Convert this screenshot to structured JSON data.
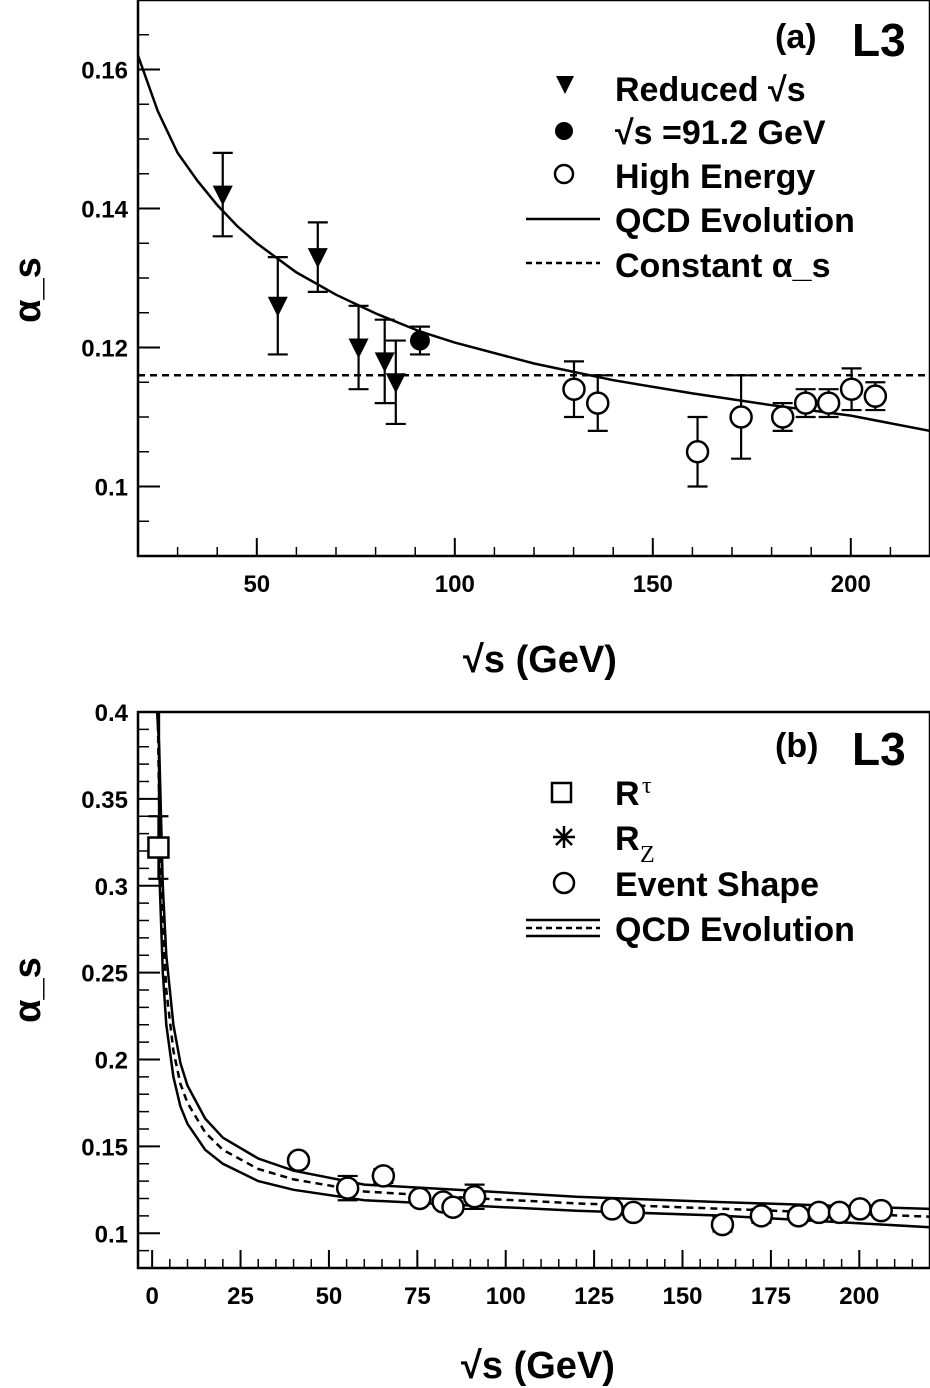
{
  "chart_data": [
    {
      "type": "scatter",
      "panel_label": "(a)",
      "experiment": "L3",
      "xlabel": "√s (GeV)",
      "ylabel": "α_s",
      "xlim": [
        20,
        220
      ],
      "ylim": [
        0.09,
        0.17
      ],
      "x_ticks": [
        50,
        100,
        150,
        200
      ],
      "y_ticks": [
        0.1,
        0.12,
        0.14,
        0.16
      ],
      "x_tick_labels": [
        "50",
        "100",
        "150",
        "200"
      ],
      "y_tick_labels": [
        "0.1",
        "0.12",
        "0.14",
        "0.16"
      ],
      "grid": false,
      "legend_position": "top-right",
      "legend": [
        {
          "label": "Reduced √s",
          "marker": "triangle-down-filled"
        },
        {
          "label": "√s =91.2 GeV",
          "marker": "circle-filled"
        },
        {
          "label": "High Energy",
          "marker": "circle-open"
        },
        {
          "label": "QCD Evolution",
          "marker": "solid-line"
        },
        {
          "label": "Constant α_s",
          "marker": "dashed-line"
        }
      ],
      "series": [
        {
          "name": "Reduced √s",
          "marker": "triangle-down-filled",
          "x": [
            41.4,
            55.3,
            65.4,
            75.7,
            82.3,
            85.1
          ],
          "y": [
            0.142,
            0.126,
            0.133,
            0.12,
            0.118,
            0.115
          ],
          "err_low": [
            0.006,
            0.007,
            0.005,
            0.006,
            0.006,
            0.006
          ],
          "err_high": [
            0.006,
            0.007,
            0.005,
            0.006,
            0.006,
            0.006
          ]
        },
        {
          "name": "√s =91.2 GeV",
          "marker": "circle-filled",
          "x": [
            91.2
          ],
          "y": [
            0.121
          ],
          "err_low": [
            0.002
          ],
          "err_high": [
            0.002
          ]
        },
        {
          "name": "High Energy",
          "marker": "circle-open",
          "x": [
            130.1,
            136.1,
            161.3,
            172.3,
            182.8,
            188.6,
            194.4,
            200.2,
            206.2
          ],
          "y": [
            0.114,
            0.112,
            0.105,
            0.11,
            0.11,
            0.112,
            0.112,
            0.114,
            0.113
          ],
          "err_low": [
            0.004,
            0.004,
            0.005,
            0.006,
            0.002,
            0.002,
            0.002,
            0.003,
            0.002
          ],
          "err_high": [
            0.004,
            0.004,
            0.005,
            0.006,
            0.002,
            0.002,
            0.002,
            0.003,
            0.002
          ]
        }
      ],
      "qcd_evolution": {
        "x": [
          20,
          25,
          30,
          35,
          40,
          45,
          50,
          60,
          70,
          80,
          91.2,
          100,
          120,
          140,
          160,
          180,
          200,
          220
        ],
        "y": [
          0.162,
          0.154,
          0.148,
          0.144,
          0.1405,
          0.1375,
          0.135,
          0.1308,
          0.1276,
          0.1249,
          0.1223,
          0.1207,
          0.1177,
          0.1153,
          0.1134,
          0.1117,
          0.1102,
          0.108
        ]
      },
      "constant_alpha_s": 0.116
    },
    {
      "type": "scatter",
      "panel_label": "(b)",
      "experiment": "L3",
      "xlabel": "√s (GeV)",
      "ylabel": "α_s",
      "xlim": [
        -4,
        220
      ],
      "ylim": [
        0.08,
        0.4
      ],
      "x_ticks": [
        0,
        25,
        50,
        75,
        100,
        125,
        150,
        175,
        200
      ],
      "y_ticks": [
        0.1,
        0.15,
        0.2,
        0.25,
        0.3,
        0.35,
        0.4
      ],
      "x_tick_labels": [
        "0",
        "25",
        "50",
        "75",
        "100",
        "125",
        "150",
        "175",
        "200"
      ],
      "y_tick_labels": [
        "0.1",
        "0.15",
        "0.2",
        "0.25",
        "0.3",
        "0.35",
        "0.4"
      ],
      "grid": false,
      "legend_position": "top-right",
      "legend": [
        {
          "label": "R",
          "sub": "τ",
          "marker": "square-open"
        },
        {
          "label": "R",
          "sub": "Z",
          "marker": "asterisk"
        },
        {
          "label": "Event Shape",
          "marker": "circle-open"
        },
        {
          "label": "QCD Evolution",
          "marker": "band"
        }
      ],
      "series": [
        {
          "name": "R_τ",
          "marker": "square-open",
          "x": [
            1.777
          ],
          "y": [
            0.322
          ],
          "err_low": [
            0.018
          ],
          "err_high": [
            0.018
          ]
        },
        {
          "name": "R_Z",
          "marker": "asterisk",
          "x": [
            91.2
          ],
          "y": [
            0.121
          ],
          "err_low": [
            0.007
          ],
          "err_high": [
            0.007
          ]
        },
        {
          "name": "Event Shape",
          "marker": "circle-open",
          "x": [
            41.4,
            55.3,
            65.4,
            75.7,
            82.3,
            85.1,
            91.2,
            130.1,
            136.1,
            161.3,
            172.3,
            182.8,
            188.6,
            194.4,
            200.2,
            206.2
          ],
          "y": [
            0.142,
            0.126,
            0.133,
            0.12,
            0.118,
            0.115,
            0.121,
            0.114,
            0.112,
            0.105,
            0.11,
            0.11,
            0.112,
            0.112,
            0.114,
            0.113
          ],
          "err_low": [
            0.003,
            0.007,
            0.004,
            0.003,
            0.003,
            0.003,
            0.002,
            0.003,
            0.003,
            0.004,
            0.004,
            0.002,
            0.002,
            0.002,
            0.002,
            0.002
          ],
          "err_high": [
            0.003,
            0.007,
            0.004,
            0.003,
            0.003,
            0.003,
            0.002,
            0.003,
            0.003,
            0.004,
            0.004,
            0.002,
            0.002,
            0.002,
            0.002,
            0.002
          ]
        }
      ],
      "qcd_band": {
        "central": {
          "x": [
            1.6,
            2,
            3,
            4,
            6,
            8,
            10,
            15,
            20,
            30,
            40,
            60,
            91.2,
            120,
            160,
            220
          ],
          "y": [
            0.4,
            0.345,
            0.275,
            0.24,
            0.205,
            0.186,
            0.175,
            0.158,
            0.148,
            0.137,
            0.131,
            0.124,
            0.1202,
            0.1172,
            0.1142,
            0.1095
          ]
        },
        "upper": {
          "x": [
            1.4,
            2,
            3,
            4,
            6,
            8,
            10,
            15,
            20,
            30,
            40,
            60,
            91.2,
            120,
            160,
            220
          ],
          "y": [
            0.4,
            0.38,
            0.3,
            0.26,
            0.22,
            0.198,
            0.185,
            0.166,
            0.155,
            0.143,
            0.136,
            0.128,
            0.1245,
            0.121,
            0.118,
            0.114
          ]
        },
        "lower": {
          "x": [
            1.9,
            2,
            3,
            4,
            6,
            8,
            10,
            15,
            20,
            30,
            40,
            60,
            91.2,
            120,
            160,
            220
          ],
          "y": [
            0.4,
            0.31,
            0.25,
            0.22,
            0.19,
            0.173,
            0.163,
            0.148,
            0.14,
            0.13,
            0.125,
            0.119,
            0.1158,
            0.113,
            0.1102,
            0.1035
          ]
        }
      }
    }
  ]
}
